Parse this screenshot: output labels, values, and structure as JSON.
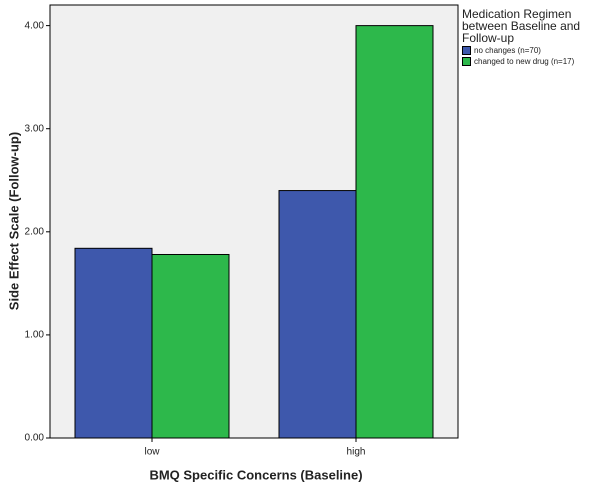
{
  "chart_data": {
    "type": "bar",
    "x_label": "BMQ Specific Concerns (Baseline)",
    "y_label": "Side Effect Scale (Follow-up)",
    "legend_title": "Medication Regimen between Baseline and Follow-up",
    "categories": [
      "low",
      "high"
    ],
    "series": [
      {
        "name": "no changes (n=70)",
        "color": "#3e58ac",
        "values": [
          1.84,
          2.4
        ]
      },
      {
        "name": "changed to new drug (n=17)",
        "color": "#2db84b",
        "values": [
          1.78,
          4.0
        ]
      }
    ],
    "ylim": [
      0,
      4.2
    ],
    "yticks": [
      {
        "value": 0,
        "label": "0.00"
      },
      {
        "value": 1,
        "label": "1.00"
      },
      {
        "value": 2,
        "label": "2.00"
      },
      {
        "value": 3,
        "label": "3.00"
      },
      {
        "value": 4,
        "label": "4.00"
      }
    ],
    "legend": "right"
  }
}
